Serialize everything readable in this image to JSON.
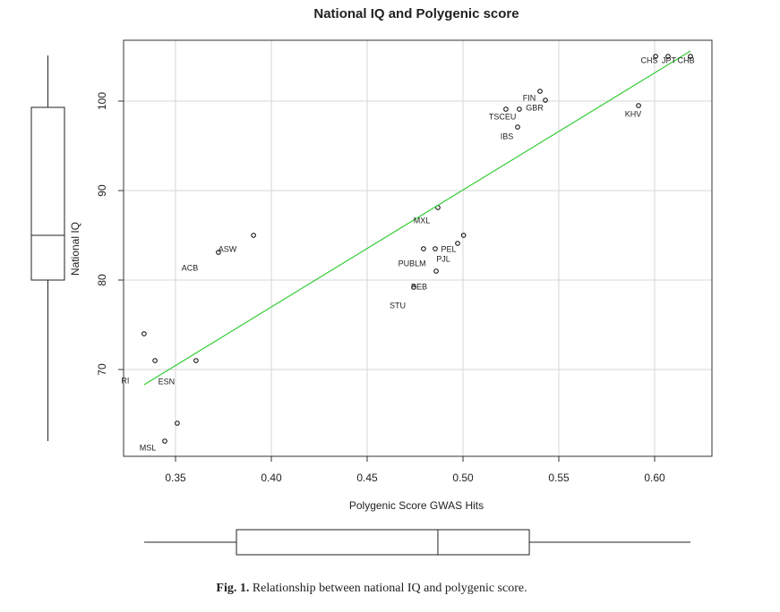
{
  "chart_data": {
    "type": "scatter",
    "title": "National IQ and Polygenic score",
    "xlabel": "Polygenic Score GWAS Hits",
    "ylabel": "National IQ",
    "x": [
      0.3336,
      0.3393,
      0.3607,
      0.3509,
      0.3444,
      0.3724,
      0.3907,
      0.4869,
      0.5003,
      0.4794,
      0.4855,
      0.4972,
      0.486,
      0.4743,
      0.5224,
      0.5294,
      0.5285,
      0.5402,
      0.543,
      0.5916,
      0.6005,
      0.607,
      0.6187
    ],
    "values": [
      74,
      71,
      71,
      64,
      62,
      83.1,
      85,
      88.1,
      85,
      83.5,
      83.5,
      84.1,
      81,
      79.2,
      99.1,
      99.1,
      97.1,
      101.1,
      100.1,
      99.5,
      105,
      105,
      105
    ],
    "color": "#000000",
    "xlim": [
      0.3229,
      0.6299
    ],
    "ylim": [
      60.3,
      106.8
    ],
    "xticks": [
      0.35,
      {
        "value": 0.4,
        "label": "0.40"
      },
      0.45,
      {
        "value": 0.5,
        "label": "0.50"
      },
      0.55,
      {
        "value": 0.6,
        "label": "0.60"
      }
    ],
    "yticks": [
      70,
      80,
      90,
      100
    ],
    "grid": true,
    "fit": {
      "color": "#33cc33",
      "x": [
        0.3336,
        0.6187
      ],
      "y": [
        68.3,
        105.6
      ]
    },
    "annotations": [
      {
        "text": "CHS",
        "x": 0.5972,
        "y": 104.5
      },
      {
        "text": "JPT",
        "x": 0.6075,
        "y": 104.5
      },
      {
        "text": "CHB",
        "x": 0.6164,
        "y": 104.5
      },
      {
        "text": "FIN",
        "x": 0.5346,
        "y": 100.3
      },
      {
        "text": "GBR",
        "x": 0.5374,
        "y": 99.2
      },
      {
        "text": "TSCEU",
        "x": 0.5206,
        "y": 98.2
      },
      {
        "text": "IBS",
        "x": 0.5229,
        "y": 96.0
      },
      {
        "text": "KHV",
        "x": 0.5888,
        "y": 98.5
      },
      {
        "text": "MXL",
        "x": 0.4785,
        "y": 86.6
      },
      {
        "text": "PEL",
        "x": 0.4925,
        "y": 83.4
      },
      {
        "text": "PJL",
        "x": 0.4897,
        "y": 82.3
      },
      {
        "text": "PUBLM",
        "x": 0.4734,
        "y": 81.8
      },
      {
        "text": "BEB",
        "x": 0.4771,
        "y": 79.2
      },
      {
        "text": "STU",
        "x": 0.4659,
        "y": 77.1
      },
      {
        "text": "ASW",
        "x": 0.3771,
        "y": 83.4
      },
      {
        "text": "ACB",
        "x": 0.3575,
        "y": 81.3
      },
      {
        "text": "ESN",
        "x": 0.3453,
        "y": 68.6
      },
      {
        "text": "MSL",
        "x": 0.3355,
        "y": 61.2
      },
      {
        "text": "RI",
        "x": 0.3238,
        "y": 68.7
      }
    ],
    "marginal_boxplots": {
      "y": {
        "min": 62,
        "q1": 80,
        "median": 85,
        "q3": 99.3,
        "max": 105.1
      },
      "x": {
        "min": 0.3336,
        "q1": 0.3818,
        "median": 0.4869,
        "q3": 0.5346,
        "max": 0.6187
      }
    }
  },
  "caption": {
    "label": "Fig. 1.",
    "text": "Relationship between national IQ and polygenic score."
  }
}
